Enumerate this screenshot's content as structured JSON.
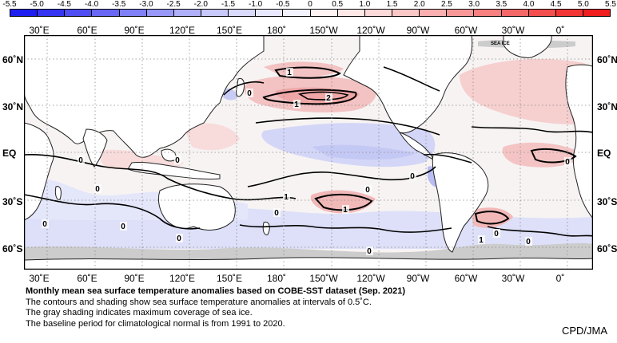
{
  "colorbar": {
    "labels": [
      "-5.5",
      "-5.0",
      "-4.5",
      "-4.0",
      "-3.5",
      "-3.0",
      "-2.5",
      "-2.0",
      "-1.5",
      "-1.0",
      "-0.5",
      "0",
      "0.5",
      "1.0",
      "1.5",
      "2.0",
      "2.5",
      "3.0",
      "3.5",
      "4.0",
      "4.5",
      "5.0",
      "5.5"
    ],
    "colors": [
      "#1e1ef0",
      "#3535f2",
      "#4f4ff3",
      "#6868f5",
      "#8080f7",
      "#9898f8",
      "#b0b0fa",
      "#c8c8fb",
      "#dadafd",
      "#e8e8fe",
      "#f3f3ff",
      "#fff3f3",
      "#fee8e8",
      "#fddada",
      "#fbc8c8",
      "#fab0b0",
      "#f89898",
      "#f78080",
      "#f56868",
      "#f34f4f",
      "#f23535",
      "#f01e1e"
    ]
  },
  "longitude_labels": [
    "30˚E",
    "60˚E",
    "90˚E",
    "120˚E",
    "150˚E",
    "180˚",
    "150˚W",
    "120˚W",
    "90˚W",
    "60˚W",
    "30˚W",
    "0˚"
  ],
  "latitude_labels": [
    "60˚N",
    "30˚N",
    "EQ",
    "30˚S",
    "60˚S"
  ],
  "contour_labels": [
    "1",
    "0",
    "1",
    "2",
    "0",
    "0",
    "0",
    "0",
    "1",
    "0",
    "0",
    "0",
    "0",
    "1",
    "0",
    "0",
    "0",
    "0",
    "1",
    "0"
  ],
  "sea_ice_label": "SEA ICE",
  "colors": {
    "land": "#ffffff",
    "sea_ice": "#cccccc",
    "positive": "#f6c9c9",
    "negative": "#d3d6f6",
    "neutral": "#f7f3f3"
  },
  "caption": {
    "title": "Monthly mean sea surface temperature anomalies based on COBE-SST dataset (Sep. 2021)",
    "line1": "The contours and shading show sea surface temperature anomalies at intervals of 0.5˚C.",
    "line2": "The gray shading indicates maximum coverage of sea ice.",
    "line3": "The baseline period for climatological normal is from 1991 to 2020."
  },
  "credit": "CPD/JMA"
}
